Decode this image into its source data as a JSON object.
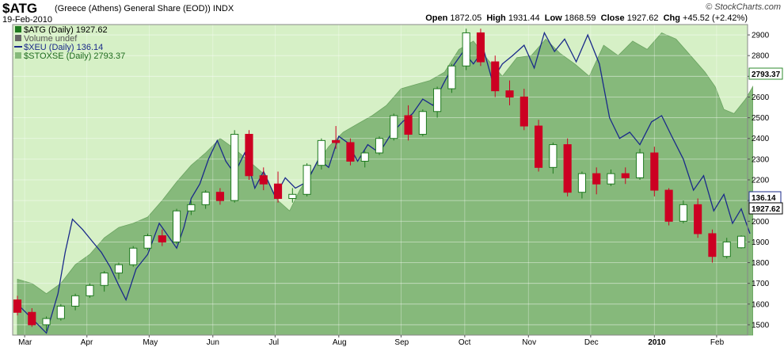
{
  "header": {
    "symbol": "$ATG",
    "description": "(Greece (Athens) General Share (EOD))",
    "exchange": "INDX",
    "date": "19-Feb-2010",
    "open_label": "Open",
    "open": "1872.05",
    "high_label": "High",
    "high": "1931.44",
    "low_label": "Low",
    "low": "1868.59",
    "close_label": "Close",
    "close": "1927.62",
    "chg_label": "Chg",
    "chg": "+45.52 (+2.42%)",
    "brand": "© StockCharts.com"
  },
  "legend": {
    "atg": "$ATG (Daily) 1927.62",
    "volume": "Volume undef",
    "xeu": "$XEU (Daily) 136.14",
    "stoxse": "$STOXSE (Daily) 2793.37"
  },
  "tags": {
    "stoxse": "2793.37",
    "xeu": "136.14",
    "atg": "1927.62"
  },
  "colors": {
    "background": "#d6f0c6",
    "area": "#86b97b",
    "area_line": "#6aa460",
    "xeu": "#1a2a8a",
    "up": "#1f7a1f",
    "down": "#cc0022",
    "tag_stoxse": "#2e8b2e",
    "tag_xeu": "#1a2a8a",
    "tag_atg": "#000000"
  },
  "chart_data": {
    "type": "line",
    "ylim": [
      1450,
      2950
    ],
    "yticks": [
      1500,
      1600,
      1700,
      1800,
      1900,
      2000,
      2100,
      2200,
      2300,
      2400,
      2500,
      2600,
      2700,
      2800,
      2900
    ],
    "months": [
      {
        "label": "Mar",
        "week": 0.5
      },
      {
        "label": "Apr",
        "week": 4.8
      },
      {
        "label": "May",
        "week": 9.1
      },
      {
        "label": "Jun",
        "week": 13.5
      },
      {
        "label": "Jul",
        "week": 17.8
      },
      {
        "label": "Aug",
        "week": 22.2
      },
      {
        "label": "Sep",
        "week": 26.5
      },
      {
        "label": "Oct",
        "week": 30.9
      },
      {
        "label": "Nov",
        "week": 35.3
      },
      {
        "label": "Dec",
        "week": 39.6
      },
      {
        "label": "2010",
        "week": 44.0,
        "bold": true
      },
      {
        "label": "Feb",
        "week": 48.3
      }
    ],
    "weeks": 51,
    "atg_ohlc": [
      [
        1620,
        1640,
        1545,
        1560
      ],
      [
        1560,
        1580,
        1490,
        1500
      ],
      [
        1500,
        1540,
        1470,
        1530
      ],
      [
        1530,
        1600,
        1520,
        1590
      ],
      [
        1590,
        1650,
        1570,
        1640
      ],
      [
        1640,
        1700,
        1630,
        1690
      ],
      [
        1690,
        1760,
        1660,
        1750
      ],
      [
        1750,
        1800,
        1720,
        1790
      ],
      [
        1790,
        1880,
        1780,
        1870
      ],
      [
        1870,
        1940,
        1860,
        1930
      ],
      [
        1930,
        1960,
        1880,
        1900
      ],
      [
        1900,
        2060,
        1890,
        2050
      ],
      [
        2050,
        2100,
        2030,
        2080
      ],
      [
        2080,
        2150,
        2060,
        2140
      ],
      [
        2140,
        2160,
        2080,
        2100
      ],
      [
        2100,
        2440,
        2090,
        2420
      ],
      [
        2420,
        2440,
        2200,
        2220
      ],
      [
        2220,
        2260,
        2150,
        2180
      ],
      [
        2180,
        2240,
        2090,
        2110
      ],
      [
        2110,
        2160,
        2090,
        2130
      ],
      [
        2130,
        2280,
        2120,
        2270
      ],
      [
        2270,
        2400,
        2250,
        2390
      ],
      [
        2390,
        2460,
        2350,
        2380
      ],
      [
        2380,
        2400,
        2270,
        2290
      ],
      [
        2290,
        2340,
        2260,
        2330
      ],
      [
        2330,
        2410,
        2320,
        2400
      ],
      [
        2400,
        2520,
        2390,
        2510
      ],
      [
        2510,
        2560,
        2390,
        2420
      ],
      [
        2420,
        2540,
        2410,
        2530
      ],
      [
        2530,
        2650,
        2500,
        2640
      ],
      [
        2640,
        2760,
        2620,
        2750
      ],
      [
        2750,
        2930,
        2730,
        2910
      ],
      [
        2910,
        2930,
        2750,
        2770
      ],
      [
        2770,
        2800,
        2600,
        2630
      ],
      [
        2630,
        2680,
        2560,
        2600
      ],
      [
        2600,
        2640,
        2440,
        2460
      ],
      [
        2460,
        2490,
        2240,
        2260
      ],
      [
        2260,
        2380,
        2230,
        2370
      ],
      [
        2370,
        2400,
        2120,
        2140
      ],
      [
        2140,
        2240,
        2110,
        2230
      ],
      [
        2230,
        2260,
        2130,
        2180
      ],
      [
        2180,
        2250,
        2170,
        2230
      ],
      [
        2230,
        2260,
        2180,
        2210
      ],
      [
        2210,
        2350,
        2200,
        2330
      ],
      [
        2330,
        2360,
        2120,
        2150
      ],
      [
        2150,
        2160,
        1980,
        2000
      ],
      [
        2000,
        2100,
        1990,
        2080
      ],
      [
        2080,
        2110,
        1920,
        1940
      ],
      [
        1940,
        1960,
        1800,
        1830
      ],
      [
        1830,
        1920,
        1820,
        1900
      ],
      [
        1872.05,
        1931.44,
        1868.59,
        1927.62
      ]
    ],
    "xeu": [
      [
        0,
        1600
      ],
      [
        1,
        1530
      ],
      [
        2,
        1460
      ],
      [
        2.8,
        1650
      ],
      [
        3.3,
        1850
      ],
      [
        3.8,
        2010
      ],
      [
        4.5,
        1960
      ],
      [
        5.2,
        1900
      ],
      [
        5.8,
        1850
      ],
      [
        6.4,
        1780
      ],
      [
        7,
        1690
      ],
      [
        7.5,
        1620
      ],
      [
        8.2,
        1770
      ],
      [
        9,
        1840
      ],
      [
        9.8,
        1990
      ],
      [
        10.3,
        1940
      ],
      [
        11,
        1870
      ],
      [
        11.5,
        1970
      ],
      [
        12,
        2110
      ],
      [
        12.6,
        2180
      ],
      [
        13.2,
        2300
      ],
      [
        13.8,
        2390
      ],
      [
        14.4,
        2290
      ],
      [
        15,
        2230
      ],
      [
        15.7,
        2330
      ],
      [
        16.4,
        2160
      ],
      [
        17,
        2240
      ],
      [
        17.8,
        2120
      ],
      [
        18.5,
        2210
      ],
      [
        19.2,
        2160
      ],
      [
        20,
        2190
      ],
      [
        20.8,
        2300
      ],
      [
        21.5,
        2260
      ],
      [
        22.2,
        2410
      ],
      [
        22.8,
        2380
      ],
      [
        23.5,
        2290
      ],
      [
        24.2,
        2370
      ],
      [
        25,
        2330
      ],
      [
        25.8,
        2420
      ],
      [
        26.6,
        2480
      ],
      [
        27.3,
        2520
      ],
      [
        28,
        2590
      ],
      [
        28.7,
        2560
      ],
      [
        29.4,
        2660
      ],
      [
        30,
        2740
      ],
      [
        30.8,
        2820
      ],
      [
        31.5,
        2760
      ],
      [
        32.2,
        2830
      ],
      [
        32.8,
        2680
      ],
      [
        33.5,
        2760
      ],
      [
        34.2,
        2800
      ],
      [
        35,
        2850
      ],
      [
        35.7,
        2740
      ],
      [
        36.4,
        2910
      ],
      [
        37.1,
        2820
      ],
      [
        37.8,
        2880
      ],
      [
        38.6,
        2770
      ],
      [
        39.4,
        2900
      ],
      [
        40.2,
        2760
      ],
      [
        40.9,
        2500
      ],
      [
        41.6,
        2400
      ],
      [
        42.3,
        2430
      ],
      [
        43,
        2370
      ],
      [
        43.8,
        2480
      ],
      [
        44.5,
        2510
      ],
      [
        45.2,
        2410
      ],
      [
        46,
        2300
      ],
      [
        46.7,
        2150
      ],
      [
        47.4,
        2220
      ],
      [
        48.1,
        2050
      ],
      [
        48.8,
        2130
      ],
      [
        49.4,
        1990
      ],
      [
        50,
        2060
      ],
      [
        50.6,
        1940
      ]
    ],
    "stoxse": [
      [
        0,
        1720
      ],
      [
        1,
        1700
      ],
      [
        2,
        1650
      ],
      [
        3,
        1700
      ],
      [
        4,
        1790
      ],
      [
        5,
        1840
      ],
      [
        6,
        1920
      ],
      [
        7,
        1970
      ],
      [
        8,
        1990
      ],
      [
        9,
        2020
      ],
      [
        10,
        2100
      ],
      [
        11,
        2190
      ],
      [
        12,
        2270
      ],
      [
        13,
        2330
      ],
      [
        14,
        2400
      ],
      [
        15,
        2350
      ],
      [
        16,
        2290
      ],
      [
        17,
        2230
      ],
      [
        18,
        2100
      ],
      [
        18.8,
        2050
      ],
      [
        19.5,
        2150
      ],
      [
        20.5,
        2260
      ],
      [
        21.5,
        2360
      ],
      [
        22.5,
        2430
      ],
      [
        23.5,
        2470
      ],
      [
        24.5,
        2510
      ],
      [
        25.5,
        2560
      ],
      [
        26.5,
        2640
      ],
      [
        27.5,
        2660
      ],
      [
        28.5,
        2680
      ],
      [
        29.5,
        2720
      ],
      [
        30.5,
        2830
      ],
      [
        31.5,
        2870
      ],
      [
        32.5,
        2780
      ],
      [
        33.5,
        2700
      ],
      [
        34.5,
        2790
      ],
      [
        35.5,
        2800
      ],
      [
        36.5,
        2880
      ],
      [
        37.5,
        2810
      ],
      [
        38.5,
        2760
      ],
      [
        39.5,
        2700
      ],
      [
        40.5,
        2850
      ],
      [
        41.5,
        2800
      ],
      [
        42.5,
        2870
      ],
      [
        43.5,
        2830
      ],
      [
        44.5,
        2910
      ],
      [
        45.5,
        2880
      ],
      [
        46.5,
        2800
      ],
      [
        47.5,
        2720
      ],
      [
        48.2,
        2650
      ],
      [
        48.8,
        2540
      ],
      [
        49.5,
        2520
      ],
      [
        50.3,
        2590
      ],
      [
        50.8,
        2650
      ]
    ]
  }
}
